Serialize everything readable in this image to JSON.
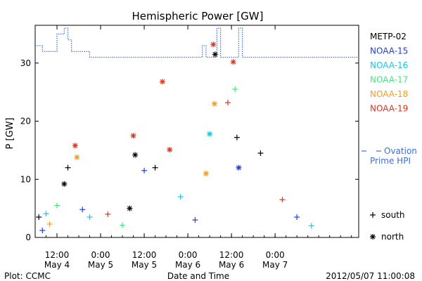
{
  "chart_data": {
    "type": "scatter",
    "title": "Hemispheric Power [GW]",
    "ylabel": "P [GW]",
    "xlabel": "Date and Time",
    "xlim": [
      "2012-05-04T06:00",
      "2012-05-07T23:00"
    ],
    "ylim": [
      0,
      36.5
    ],
    "yticks": [
      0,
      10,
      20,
      30
    ],
    "xticks": [
      {
        "time": "2012-05-04T12:00",
        "label1": "12:00",
        "label2": "May 4"
      },
      {
        "time": "2012-05-05T00:00",
        "label1": "0:00",
        "label2": "May 5"
      },
      {
        "time": "2012-05-05T12:00",
        "label1": "12:00",
        "label2": "May 5"
      },
      {
        "time": "2012-05-06T00:00",
        "label1": "0:00",
        "label2": "May 6"
      },
      {
        "time": "2012-05-06T12:00",
        "label1": "12:00",
        "label2": "May 6"
      },
      {
        "time": "2012-05-07T00:00",
        "label1": "0:00",
        "label2": "May 7"
      }
    ],
    "legend_position": "right",
    "series": [
      {
        "name": "METP-02",
        "color": "#000000"
      },
      {
        "name": "NOAA-15",
        "color": "#1f3fd6"
      },
      {
        "name": "NOAA-16",
        "color": "#12c8e0"
      },
      {
        "name": "NOAA-17",
        "color": "#3fe87a"
      },
      {
        "name": "NOAA-18",
        "color": "#f59a1e"
      },
      {
        "name": "NOAA-19",
        "color": "#e0301a"
      }
    ],
    "markers": {
      "south_label": "south",
      "north_label": "north"
    },
    "ovation": {
      "label1": "Ovation",
      "label2": "Prime HPI",
      "color": "#3a6fd8",
      "segments": [
        [
          "2012-05-04T06:00",
          33
        ],
        [
          "2012-05-04T08:00",
          32
        ],
        [
          "2012-05-04T11:00",
          32
        ],
        [
          "2012-05-04T12:00",
          35
        ],
        [
          "2012-05-04T14:00",
          36
        ],
        [
          "2012-05-04T15:00",
          34
        ],
        [
          "2012-05-04T16:00",
          32
        ],
        [
          "2012-05-04T21:00",
          31
        ],
        [
          "2012-05-05T05:00",
          31
        ],
        [
          "2012-05-05T05:30",
          31
        ],
        [
          "2012-05-06T03:00",
          31
        ],
        [
          "2012-05-06T04:00",
          33
        ],
        [
          "2012-05-06T05:00",
          31
        ],
        [
          "2012-05-06T07:00",
          31
        ],
        [
          "2012-05-06T08:00",
          36
        ],
        [
          "2012-05-06T09:00",
          31
        ],
        [
          "2012-05-06T13:00",
          31
        ],
        [
          "2012-05-06T14:00",
          36
        ],
        [
          "2012-05-06T15:00",
          31
        ],
        [
          "2012-05-07T10:00",
          31
        ],
        [
          "2012-05-07T23:00",
          31
        ]
      ]
    },
    "points": [
      {
        "t": "2012-05-04T07:00",
        "v": 3.5,
        "s": 0,
        "h": "s"
      },
      {
        "t": "2012-05-04T08:00",
        "v": 1.2,
        "s": 1,
        "h": "s"
      },
      {
        "t": "2012-05-04T09:00",
        "v": 4.1,
        "s": 2,
        "h": "s"
      },
      {
        "t": "2012-05-04T10:00",
        "v": 2.3,
        "s": 4,
        "h": "s"
      },
      {
        "t": "2012-05-04T12:00",
        "v": 5.5,
        "s": 3,
        "h": "s"
      },
      {
        "t": "2012-05-04T14:00",
        "v": 9.2,
        "s": 0,
        "h": "n"
      },
      {
        "t": "2012-05-04T15:00",
        "v": 12.0,
        "s": 0,
        "h": "s"
      },
      {
        "t": "2012-05-04T17:00",
        "v": 15.8,
        "s": 5,
        "h": "n"
      },
      {
        "t": "2012-05-04T17:30",
        "v": 13.8,
        "s": 4,
        "h": "n"
      },
      {
        "t": "2012-05-04T19:00",
        "v": 4.8,
        "s": 1,
        "h": "s"
      },
      {
        "t": "2012-05-04T21:00",
        "v": 3.5,
        "s": 2,
        "h": "s"
      },
      {
        "t": "2012-05-05T02:00",
        "v": 4.0,
        "s": 5,
        "h": "s"
      },
      {
        "t": "2012-05-05T06:00",
        "v": 2.1,
        "s": 3,
        "h": "s"
      },
      {
        "t": "2012-05-05T08:00",
        "v": 5.0,
        "s": 0,
        "h": "n"
      },
      {
        "t": "2012-05-05T09:00",
        "v": 17.5,
        "s": 5,
        "h": "n"
      },
      {
        "t": "2012-05-05T09:30",
        "v": 14.2,
        "s": 0,
        "h": "n"
      },
      {
        "t": "2012-05-05T12:00",
        "v": 11.5,
        "s": 1,
        "h": "s"
      },
      {
        "t": "2012-05-05T15:00",
        "v": 12.0,
        "s": 0,
        "h": "s"
      },
      {
        "t": "2012-05-05T17:00",
        "v": 26.8,
        "s": 5,
        "h": "n"
      },
      {
        "t": "2012-05-05T19:00",
        "v": 15.1,
        "s": 5,
        "h": "n"
      },
      {
        "t": "2012-05-05T22:00",
        "v": 7.0,
        "s": 2,
        "h": "s"
      },
      {
        "t": "2012-05-06T02:00",
        "v": 3.0,
        "s": 1,
        "h": "s"
      },
      {
        "t": "2012-05-06T05:00",
        "v": 11.0,
        "s": 4,
        "h": "n"
      },
      {
        "t": "2012-05-06T06:00",
        "v": 17.8,
        "s": 2,
        "h": "n"
      },
      {
        "t": "2012-05-06T07:00",
        "v": 33.2,
        "s": 5,
        "h": "n"
      },
      {
        "t": "2012-05-06T07:30",
        "v": 31.5,
        "s": 0,
        "h": "n"
      },
      {
        "t": "2012-05-06T07:20",
        "v": 23.0,
        "s": 4,
        "h": "n"
      },
      {
        "t": "2012-05-06T11:00",
        "v": 23.2,
        "s": 5,
        "h": "s"
      },
      {
        "t": "2012-05-06T12:30",
        "v": 30.2,
        "s": 5,
        "h": "n"
      },
      {
        "t": "2012-05-06T13:00",
        "v": 25.5,
        "s": 3,
        "h": "s"
      },
      {
        "t": "2012-05-06T13:30",
        "v": 17.2,
        "s": 0,
        "h": "s"
      },
      {
        "t": "2012-05-06T14:00",
        "v": 12.0,
        "s": 1,
        "h": "n"
      },
      {
        "t": "2012-05-06T20:00",
        "v": 14.5,
        "s": 0,
        "h": "s"
      },
      {
        "t": "2012-05-07T02:00",
        "v": 6.5,
        "s": 5,
        "h": "s"
      },
      {
        "t": "2012-05-07T06:00",
        "v": 3.5,
        "s": 1,
        "h": "s"
      },
      {
        "t": "2012-05-07T10:00",
        "v": 2.0,
        "s": 2,
        "h": "s"
      }
    ]
  },
  "footer": {
    "plot_credit": "Plot: CCMC",
    "timestamp": "2012/05/07 11:00:08"
  }
}
